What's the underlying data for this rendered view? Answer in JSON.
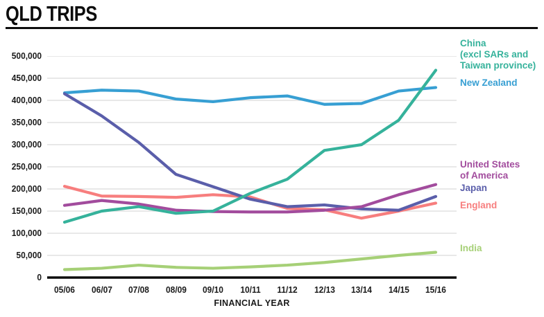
{
  "header": {
    "title": "QLD TRIPS"
  },
  "chart_data": {
    "type": "line",
    "title": "QLD TRIPS",
    "xlabel": "FINANCIAL YEAR",
    "ylabel": "",
    "ylim": [
      0,
      500000
    ],
    "y_tick_step": 50000,
    "y_tick_labels": [
      "500,000",
      "450,000",
      "400,000",
      "350,000",
      "300,000",
      "250,000",
      "200,000",
      "150,000",
      "100,000",
      "50,000",
      "0"
    ],
    "grid": true,
    "legend_position": "right",
    "x_categories": [
      "05/06",
      "06/07",
      "07/08",
      "08/09",
      "09/10",
      "10/11",
      "11/12",
      "12/13",
      "13/14",
      "14/15",
      "15/16"
    ],
    "series": [
      {
        "name": "China (excl SARs and Taiwan province)",
        "legend_lines": [
          "China",
          "(excl SARs and",
          "Taiwan province)"
        ],
        "color": "#35B29B",
        "values": [
          125000,
          150000,
          160000,
          145000,
          150000,
          190000,
          222000,
          287000,
          300000,
          355000,
          468000
        ]
      },
      {
        "name": "New Zealand",
        "legend_lines": [
          "New Zealand"
        ],
        "color": "#379FD3",
        "values": [
          417000,
          423000,
          421000,
          403000,
          397000,
          406000,
          410000,
          391000,
          393000,
          421000,
          429000
        ]
      },
      {
        "name": "United States of America",
        "legend_lines": [
          "United States",
          "of America"
        ],
        "color": "#A24C9D",
        "values": [
          163000,
          174000,
          166000,
          152000,
          149000,
          148000,
          148000,
          152000,
          160000,
          187000,
          210000
        ]
      },
      {
        "name": "Japan",
        "legend_lines": [
          "Japan"
        ],
        "color": "#5A5EAA",
        "values": [
          415000,
          365000,
          305000,
          233000,
          205000,
          177000,
          160000,
          164000,
          155000,
          152000,
          183000
        ]
      },
      {
        "name": "England",
        "legend_lines": [
          "England"
        ],
        "color": "#F77E7E",
        "values": [
          206000,
          184000,
          183000,
          181000,
          187000,
          182000,
          156000,
          153000,
          134000,
          150000,
          168000
        ]
      },
      {
        "name": "India",
        "legend_lines": [
          "India"
        ],
        "color": "#A6D077",
        "values": [
          18000,
          21000,
          28000,
          23000,
          21000,
          24000,
          28000,
          34000,
          42000,
          50000,
          57000
        ]
      }
    ]
  }
}
